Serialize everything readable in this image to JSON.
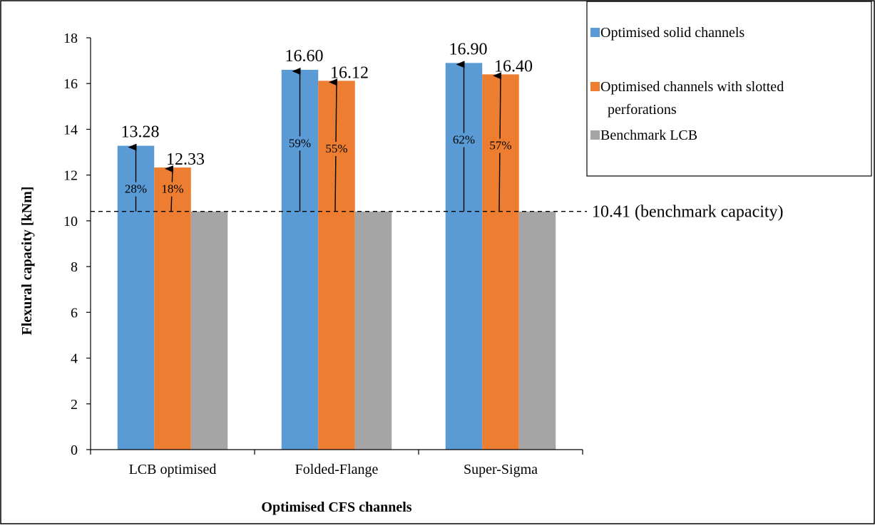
{
  "chart_data": {
    "type": "bar",
    "title": "",
    "xlabel": "Optimised CFS channels",
    "ylabel": "Flexural capacity [kNm]",
    "ylim": [
      0,
      18
    ],
    "yticks": [
      0,
      2,
      4,
      6,
      8,
      10,
      12,
      14,
      16,
      18
    ],
    "categories": [
      "LCB optimised",
      "Folded-Flange",
      "Super-Sigma"
    ],
    "series": [
      {
        "name": "Optimised solid channels",
        "color": "#5b9bd5",
        "values": [
          13.28,
          16.6,
          16.9
        ],
        "labels": [
          "13.28",
          "16.60",
          "16.90"
        ],
        "increase_labels": [
          "28%",
          "59%",
          "62%"
        ]
      },
      {
        "name": "Optimised channels with slotted perforations",
        "legend_lines": [
          "Optimised channels with slotted",
          "perforations"
        ],
        "color": "#ed7d31",
        "values": [
          12.33,
          16.12,
          16.4
        ],
        "labels": [
          "12.33",
          "16.12",
          "16.40"
        ],
        "increase_labels": [
          "18%",
          "55%",
          "57%"
        ]
      },
      {
        "name": "Benchmark LCB",
        "color": "#a5a5a5",
        "values": [
          10.41,
          10.41,
          10.41
        ]
      }
    ],
    "reference_line": {
      "value": 10.41,
      "label": "10.41 (benchmark capacity)",
      "style": "dashed"
    },
    "grid": false,
    "legend_position": "top-right"
  }
}
